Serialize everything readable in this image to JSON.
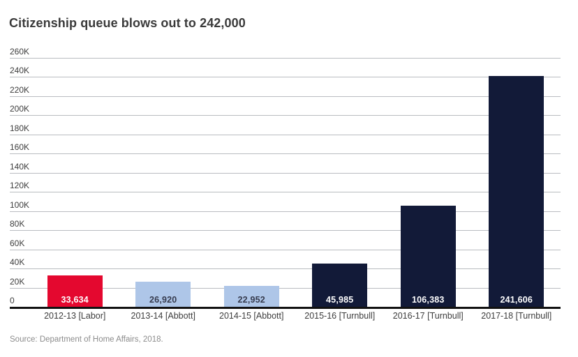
{
  "title": "Citizenship queue blows out to 242,000",
  "source": "Source: Department of Home Affairs, 2018.",
  "chart_data": {
    "type": "bar",
    "title": "Citizenship queue blows out to 242,000",
    "categories": [
      "2012-13 [Labor]",
      "2013-14 [Abbott]",
      "2014-15 [Abbott]",
      "2015-16 [Turnbull]",
      "2016-17 [Turnbull]",
      "2017-18 [Turnbull]"
    ],
    "values": [
      33634,
      26920,
      22952,
      45985,
      106383,
      241606
    ],
    "value_labels": [
      "33,634",
      "26,920",
      "22,952",
      "45,985",
      "106,383",
      "241,606"
    ],
    "bar_colors": [
      "#e4082f",
      "#aec6e8",
      "#aec6e8",
      "#121a38",
      "#121a38",
      "#121a38"
    ],
    "value_label_colors": [
      "#ffffff",
      "#363b4e",
      "#363b4e",
      "#ffffff",
      "#ffffff",
      "#ffffff"
    ],
    "xlabel": "",
    "ylabel": "",
    "ylim": [
      0,
      260000
    ],
    "ytick_step": 20000,
    "ytick_labels": [
      "0",
      "20K",
      "40K",
      "60K",
      "80K",
      "100K",
      "120K",
      "140K",
      "160K",
      "180K",
      "200K",
      "220K",
      "240K",
      "260K"
    ],
    "grid": true,
    "legend": "none",
    "source": "Source: Department of Home Affairs, 2018."
  },
  "colors": {
    "labor_red": "#e4082f",
    "abbott_light_blue": "#aec6e8",
    "turnbull_navy": "#121a38",
    "gridline": "#b9bcc0",
    "axis_line": "#111111",
    "text": "#3d3d3d",
    "source_text": "#8c8c8c"
  }
}
